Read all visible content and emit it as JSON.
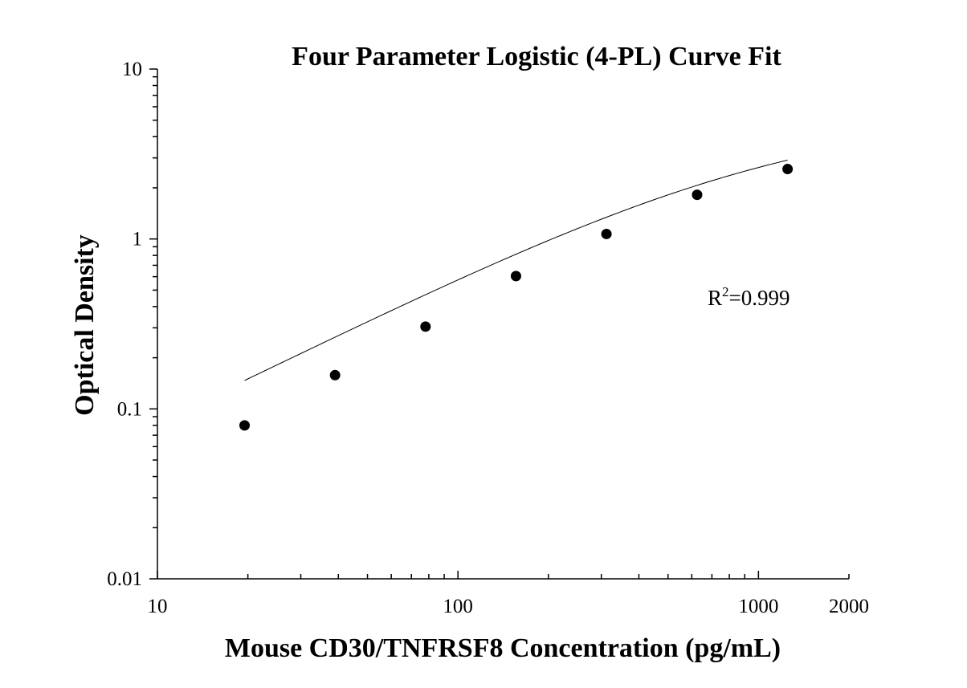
{
  "chart_data": {
    "type": "scatter",
    "title": "Four Parameter Logistic (4-PL) Curve Fit",
    "xlabel": "Mouse CD30/TNFRSF8 Concentration (pg/mL)",
    "ylabel": "Optical Density",
    "x_scale": "log",
    "y_scale": "log",
    "xlim": [
      10,
      2000
    ],
    "ylim": [
      0.01,
      10
    ],
    "x_ticks": [
      10,
      100,
      1000,
      2000
    ],
    "x_tick_labels": [
      "10",
      "100",
      "1000",
      "2000"
    ],
    "y_ticks": [
      0.01,
      0.1,
      1,
      10
    ],
    "y_tick_labels": [
      "0.01",
      "0.1",
      "1",
      "10"
    ],
    "grid": false,
    "series": [
      {
        "x": [
          19.5,
          39,
          78,
          156,
          312,
          625,
          1250
        ],
        "y": [
          0.08,
          0.158,
          0.305,
          0.605,
          1.07,
          1.82,
          2.58
        ]
      }
    ],
    "fit": {
      "type": "4-PL",
      "params": {
        "A": 0.005,
        "B": 0.9,
        "C": 1100,
        "D": 5.5
      },
      "x_range": [
        19.5,
        1250
      ]
    },
    "annotations": {
      "r2_base": "R",
      "r2_sup": "2",
      "r2_value": "=0.999"
    }
  }
}
